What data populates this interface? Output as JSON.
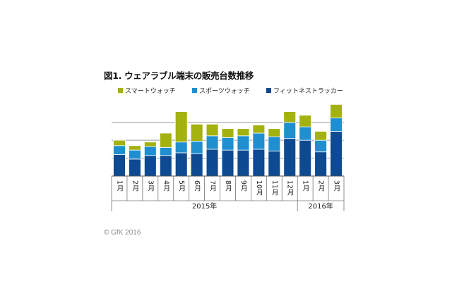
{
  "chart_title": "図1. ウェアラブル端末の販売台数推移",
  "copyright": "© GfK 2016",
  "colors": {
    "smartwatch": "#a3b20e",
    "sports_watch": "#1f8fd0",
    "fitness_tracker": "#0d4a91"
  },
  "chart_data": {
    "type": "bar",
    "stacked": true,
    "title": "図1. ウェアラブル端末の販売台数推移",
    "categories": [
      "1月",
      "2月",
      "3月",
      "4月",
      "5月",
      "6月",
      "7月",
      "8月",
      "9月",
      "10月",
      "11月",
      "12月",
      "1月",
      "2月",
      "3月"
    ],
    "year_groups": [
      {
        "label": "2015年",
        "count": 12
      },
      {
        "label": "2016年",
        "count": 3
      }
    ],
    "series": [
      {
        "name": "フィットネストラッカー",
        "color": "#0d4a91",
        "values": [
          2.4,
          1.9,
          2.3,
          2.3,
          2.6,
          2.5,
          3.0,
          2.9,
          2.9,
          3.0,
          2.8,
          4.2,
          4.0,
          2.7,
          5.0
        ]
      },
      {
        "name": "スポーツウォッチ",
        "color": "#1f8fd0",
        "values": [
          1.0,
          1.0,
          1.0,
          0.9,
          1.2,
          1.4,
          1.5,
          1.4,
          1.6,
          1.8,
          1.6,
          1.8,
          1.5,
          1.3,
          1.5
        ]
      },
      {
        "name": "スマートウォッチ",
        "color": "#a3b20e",
        "values": [
          0.6,
          0.5,
          0.5,
          1.6,
          3.4,
          1.9,
          1.3,
          1.0,
          0.8,
          0.9,
          0.9,
          1.2,
          1.3,
          1.0,
          1.5
        ]
      }
    ],
    "legend": [
      "スマートウォッチ",
      "スポーツウォッチ",
      "フィットネストラッカー"
    ],
    "ylim": [
      0,
      8.5
    ],
    "yticks": [
      2,
      4,
      6
    ],
    "grid": true,
    "legend_position": "top"
  }
}
